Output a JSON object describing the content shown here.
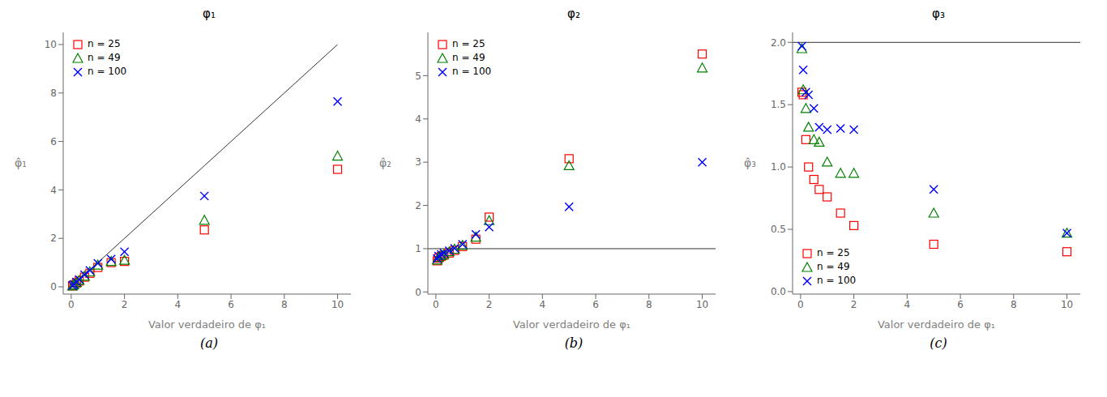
{
  "chart_data": [
    {
      "type": "scatter",
      "title": "φ₁",
      "caption": "(a)",
      "xlabel": "Valor verdadeiro de φ₁",
      "ylabel": "φ̂₁",
      "x": [
        0.05,
        0.1,
        0.2,
        0.3,
        0.5,
        0.7,
        1.0,
        1.5,
        2.0,
        5.0,
        10.0
      ],
      "series": [
        {
          "name": "n = 25",
          "color": "red",
          "marker": "square",
          "values": [
            0.04,
            0.08,
            0.16,
            0.24,
            0.4,
            0.56,
            0.8,
            1.0,
            1.05,
            2.35,
            4.85
          ]
        },
        {
          "name": "n = 49",
          "color": "green",
          "marker": "triangle",
          "values": [
            0.04,
            0.09,
            0.18,
            0.27,
            0.44,
            0.62,
            0.9,
            1.05,
            1.1,
            2.75,
            5.4
          ]
        },
        {
          "name": "n = 100",
          "color": "blue",
          "marker": "x",
          "values": [
            0.05,
            0.1,
            0.2,
            0.3,
            0.5,
            0.68,
            0.97,
            1.15,
            1.45,
            3.75,
            7.65
          ]
        }
      ],
      "xlim": [
        -0.3,
        10.5
      ],
      "ylim": [
        -0.3,
        10.5
      ],
      "xticks": [
        0,
        2,
        4,
        6,
        8,
        10
      ],
      "yticks": [
        0,
        2,
        4,
        6,
        8,
        10
      ],
      "grid": false,
      "legend": "upper left",
      "reference_line": {
        "x": [
          0,
          10
        ],
        "y": [
          0,
          10
        ]
      }
    },
    {
      "type": "scatter",
      "title": "φ₂",
      "caption": "(b)",
      "xlabel": "Valor verdadeiro de φ₁",
      "ylabel": "φ̂₂",
      "x": [
        0.05,
        0.1,
        0.2,
        0.3,
        0.5,
        0.7,
        1.0,
        1.5,
        2.0,
        5.0,
        10.0
      ],
      "series": [
        {
          "name": "n = 25",
          "color": "red",
          "marker": "square",
          "values": [
            0.72,
            0.78,
            0.82,
            0.85,
            0.9,
            0.96,
            1.05,
            1.22,
            1.73,
            3.08,
            5.5
          ]
        },
        {
          "name": "n = 49",
          "color": "green",
          "marker": "triangle",
          "values": [
            0.74,
            0.8,
            0.84,
            0.87,
            0.93,
            0.99,
            1.08,
            1.27,
            1.65,
            2.92,
            5.18
          ]
        },
        {
          "name": "n = 100",
          "color": "blue",
          "marker": "x",
          "values": [
            0.77,
            0.83,
            0.87,
            0.9,
            0.95,
            1.01,
            1.1,
            1.33,
            1.5,
            1.97,
            3.0
          ]
        }
      ],
      "xlim": [
        -0.3,
        10.5
      ],
      "ylim": [
        -0.05,
        6.0
      ],
      "xticks": [
        0,
        2,
        4,
        6,
        8,
        10
      ],
      "yticks": [
        0,
        1,
        2,
        3,
        4,
        5
      ],
      "grid": false,
      "legend": "upper left",
      "reference_y": 1.0
    },
    {
      "type": "scatter",
      "title": "φ₃",
      "caption": "(c)",
      "xlabel": "Valor verdadeiro de φ₁",
      "ylabel": "φ̂₃",
      "x": [
        0.05,
        0.1,
        0.2,
        0.3,
        0.5,
        0.7,
        1.0,
        1.5,
        2.0,
        5.0,
        10.0
      ],
      "series": [
        {
          "name": "n = 25",
          "color": "red",
          "marker": "square",
          "values": [
            1.6,
            1.58,
            1.22,
            1.0,
            0.9,
            0.82,
            0.76,
            0.63,
            0.53,
            0.38,
            0.32
          ]
        },
        {
          "name": "n = 49",
          "color": "green",
          "marker": "triangle",
          "values": [
            1.95,
            1.62,
            1.47,
            1.32,
            1.22,
            1.2,
            1.04,
            0.95,
            0.95,
            0.63,
            0.47
          ]
        },
        {
          "name": "n = 100",
          "color": "blue",
          "marker": "x",
          "values": [
            1.97,
            1.78,
            1.6,
            1.58,
            1.47,
            1.32,
            1.3,
            1.31,
            1.3,
            0.82,
            0.47
          ]
        }
      ],
      "xlim": [
        -0.3,
        10.5
      ],
      "ylim": [
        -0.02,
        2.08
      ],
      "xticks": [
        0,
        2,
        4,
        6,
        8,
        10
      ],
      "yticks": [
        {
          "value": 0,
          "label": "0.0"
        },
        0.5,
        {
          "value": 1,
          "label": "1.0"
        },
        1.5,
        {
          "value": 2,
          "label": "2.0"
        }
      ],
      "grid": false,
      "legend": "lower left",
      "reference_y": 2.0
    }
  ]
}
